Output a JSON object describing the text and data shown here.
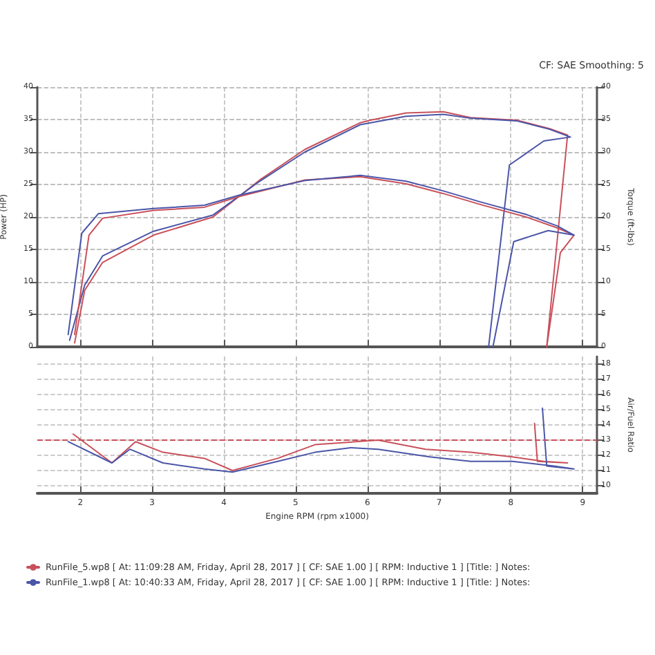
{
  "chart_data": [
    {
      "type": "line",
      "ylabel": "Power (HP)",
      "y2label": "Torque (ft-lbs)",
      "annotations": [
        "CF: SAE Smoothing: 5"
      ],
      "xlim": [
        1.4,
        9.2
      ],
      "xticks": [
        2,
        3,
        4,
        5,
        6,
        7,
        8,
        9
      ],
      "ylim": [
        0,
        40
      ],
      "yticks": [
        0,
        5,
        10,
        15,
        20,
        25,
        30,
        35,
        40
      ],
      "y2lim": [
        0,
        40
      ],
      "y2ticks": [
        0,
        5,
        10,
        15,
        20,
        25,
        30,
        35,
        40
      ],
      "grid": true,
      "tick_labels": "y",
      "line_style": "solid",
      "marker": "none",
      "series": [
        {
          "color": "#c8505a",
          "x": [
            1.92,
            2.06,
            2.31,
            3.02,
            3.85,
            4.5,
            5.13,
            5.9,
            6.04,
            6.54,
            7.06,
            7.44,
            8.08,
            8.54,
            8.79,
            8.5
          ],
          "values": [
            0.6,
            8.7,
            13,
            17.2,
            20,
            25.7,
            30.4,
            34.5,
            34.9,
            36,
            36.2,
            35.3,
            34.9,
            33.6,
            32.6,
            0
          ]
        },
        {
          "color": "#4a55a8",
          "x": [
            1.85,
            2.06,
            2.31,
            3.02,
            3.85,
            4.5,
            5.13,
            5.9,
            6.54,
            7.06,
            7.44,
            8.08,
            8.54,
            8.83,
            8.46,
            7.98,
            7.69
          ],
          "values": [
            1,
            9.5,
            14,
            17.8,
            20.3,
            25.5,
            30,
            34.2,
            35.5,
            35.8,
            35.2,
            34.8,
            33.5,
            32.3,
            31.7,
            28,
            0
          ]
        },
        {
          "color": "#c8505a",
          "axis": "y2",
          "x": [
            1.92,
            2.12,
            2.31,
            3.02,
            3.73,
            4.23,
            5.13,
            5.9,
            6.54,
            7.06,
            7.58,
            8.21,
            8.65,
            8.88,
            8.69,
            8.5
          ],
          "values": [
            1.9,
            17.2,
            19.8,
            21,
            21.5,
            23.2,
            25.7,
            26.2,
            25.1,
            23.6,
            21.9,
            20,
            18.3,
            17.2,
            14.5,
            0
          ]
        },
        {
          "color": "#4a55a8",
          "axis": "y2",
          "x": [
            1.83,
            2.02,
            2.25,
            3.02,
            3.73,
            4.23,
            5.13,
            5.9,
            6.54,
            7.06,
            7.58,
            8.21,
            8.65,
            8.88,
            8.52,
            8.04,
            7.75
          ],
          "values": [
            1.9,
            17.5,
            20.5,
            21.3,
            21.8,
            23.4,
            25.6,
            26.4,
            25.5,
            24,
            22.3,
            20.4,
            18.6,
            17.2,
            17.9,
            16.2,
            0
          ]
        }
      ]
    },
    {
      "type": "line",
      "y2label": "Air/Fuel Ratio",
      "xlabel": "Engine RPM (rpm x1000)",
      "xlim": [
        1.4,
        9.2
      ],
      "xticks": [
        2,
        3,
        4,
        5,
        6,
        7,
        8,
        9
      ],
      "y2lim": [
        9.5,
        18.5
      ],
      "y2ticks": [
        10,
        11,
        12,
        13,
        14,
        15,
        16,
        17,
        18
      ],
      "grid": true,
      "line_style": "solid",
      "marker": "none",
      "legend": "bottom",
      "ref_lines": [
        {
          "axis": "y2",
          "value": 13,
          "color": "#c8505a",
          "line_style": "dashed"
        }
      ],
      "series": [
        {
          "name": "RunFile_5.wp8 [ At: 11:09:28 AM, Friday, April 28, 2017 ] [ CF: SAE 1.00 ] [ RPM: Inductive 1 ] [Title: ] Notes:",
          "color": "#c8505a",
          "axis": "y2",
          "x": [
            1.9,
            2.44,
            2.77,
            3.15,
            3.73,
            4.12,
            4.75,
            5.27,
            6.15,
            6.81,
            7.44,
            8.02,
            8.46,
            8.79,
            8.37,
            8.33
          ],
          "values": [
            13.4,
            11.5,
            12.9,
            12.2,
            11.8,
            11,
            11.8,
            12.7,
            13,
            12.4,
            12.2,
            11.9,
            11.6,
            11.5,
            11.6,
            14.1
          ]
        },
        {
          "name": "RunFile_1.wp8 [ At: 10:40:33 AM, Friday, April 28, 2017 ] [ CF: SAE 1.00 ] [ RPM: Inductive 1 ] [Title: ] Notes:",
          "color": "#4a55a8",
          "axis": "y2",
          "x": [
            1.83,
            2.44,
            2.69,
            3.15,
            3.73,
            4.12,
            4.75,
            5.27,
            5.77,
            6.15,
            6.87,
            7.44,
            8.02,
            8.6,
            8.88,
            8.5,
            8.44
          ],
          "values": [
            12.9,
            11.5,
            12.4,
            11.5,
            11.1,
            10.9,
            11.6,
            12.2,
            12.5,
            12.4,
            11.9,
            11.6,
            11.6,
            11.3,
            11.1,
            11.3,
            15.1
          ]
        }
      ]
    }
  ]
}
